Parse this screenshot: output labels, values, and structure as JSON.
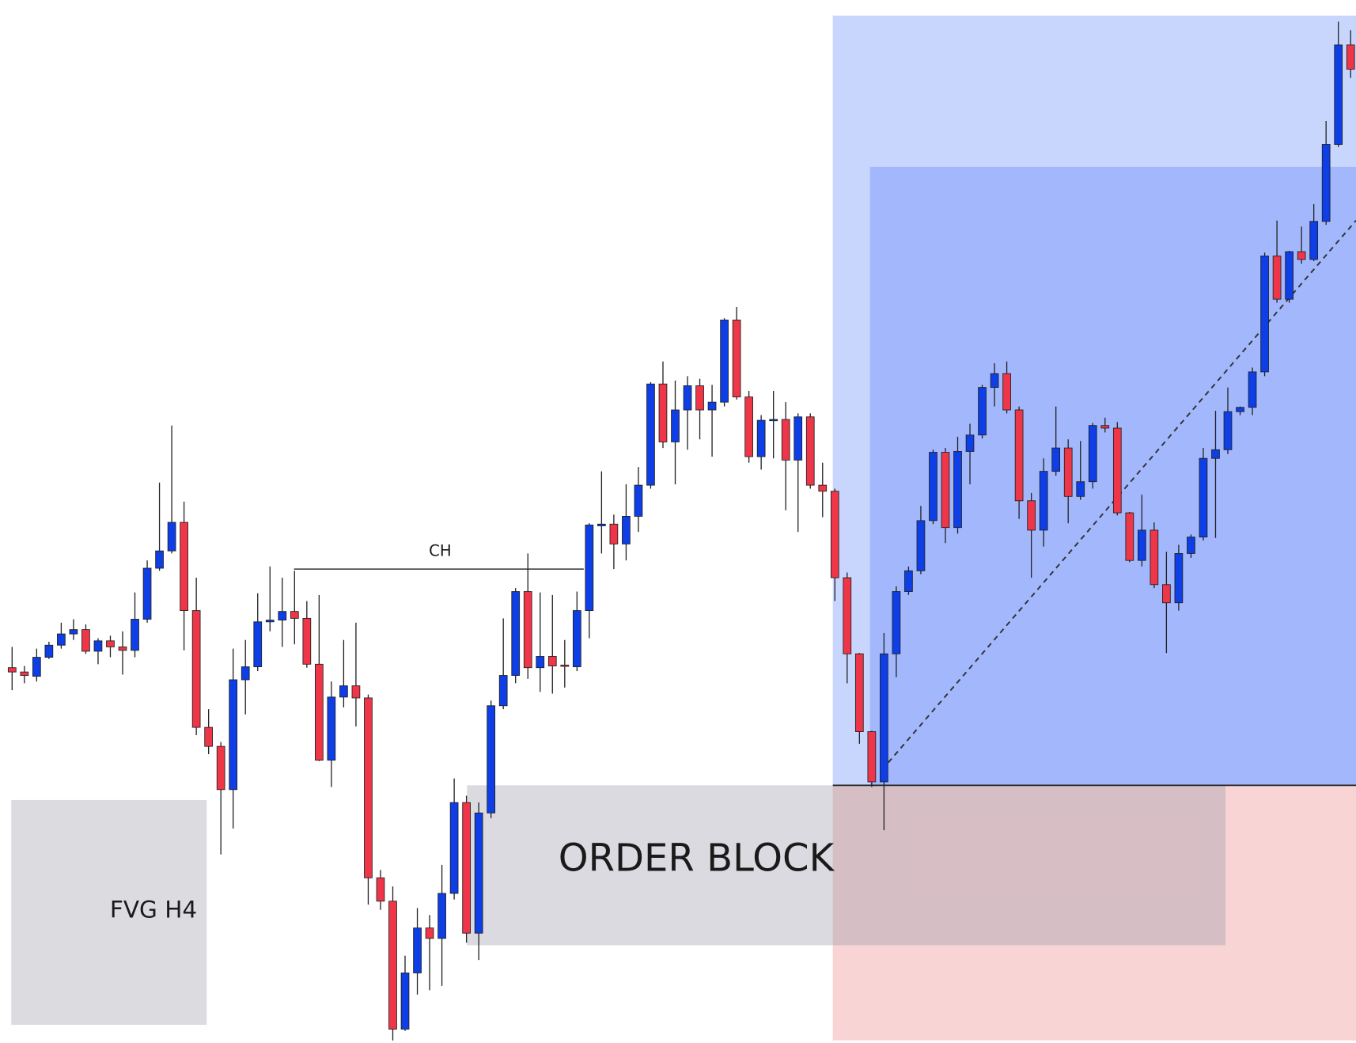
{
  "chart_data": {
    "type": "candlestick",
    "up_color": "#0d3ee6",
    "down_color": "#ef3648",
    "ylim": [
      94,
      1300
    ],
    "open": [
      528,
      523,
      518,
      540,
      554,
      567,
      572,
      547,
      559,
      552,
      548,
      584,
      643,
      663,
      696,
      594,
      459,
      437,
      387,
      514,
      529,
      581,
      583,
      593,
      585,
      532,
      421,
      494,
      507,
      493,
      285,
      258,
      110,
      175,
      227,
      215,
      267,
      372,
      221,
      360,
      484,
      519,
      616,
      528,
      541,
      531,
      529,
      594,
      692,
      694,
      671,
      703,
      739,
      856,
      789,
      826,
      854,
      826,
      835,
      930,
      841,
      772,
      814,
      815,
      768,
      818,
      739,
      732,
      632,
      544,
      454,
      396,
      544,
      616,
      640,
      698,
      777,
      690,
      778,
      797,
      852,
      868,
      826,
      721,
      687,
      755,
      782,
      726,
      743,
      808,
      805,
      707,
      652,
      687,
      624,
      603,
      660,
      679,
      770,
      780,
      824,
      829,
      870,
      1004,
      954,
      1009,
      1000,
      1044,
      1133,
      1248
    ],
    "high": [
      552,
      530,
      550,
      558,
      580,
      584,
      578,
      562,
      565,
      570,
      615,
      652,
      742,
      808,
      720,
      632,
      480,
      442,
      550,
      560,
      614,
      645,
      632,
      640,
      605,
      612,
      512,
      560,
      580,
      497,
      294,
      275,
      195,
      250,
      242,
      300,
      400,
      380,
      372,
      490,
      585,
      620,
      660,
      615,
      612,
      560,
      616,
      695,
      755,
      705,
      740,
      760,
      858,
      882,
      860,
      865,
      862,
      855,
      932,
      945,
      848,
      820,
      848,
      835,
      822,
      822,
      765,
      735,
      638,
      545,
      455,
      568,
      622,
      645,
      715,
      780,
      782,
      795,
      810,
      855,
      880,
      882,
      830,
      730,
      770,
      830,
      792,
      790,
      811,
      817,
      812,
      708,
      728,
      696,
      662,
      670,
      682,
      782,
      825,
      852,
      830,
      875,
      1008,
      1045,
      1010,
      1038,
      1064,
      1160,
      1275,
      1265
    ],
    "low": [
      502,
      510,
      512,
      538,
      550,
      560,
      544,
      532,
      540,
      520,
      540,
      580,
      640,
      660,
      548,
      450,
      428,
      312,
      342,
      474,
      524,
      570,
      552,
      555,
      528,
      420,
      390,
      482,
      460,
      254,
      248,
      97,
      108,
      150,
      155,
      160,
      260,
      210,
      190,
      354,
      480,
      510,
      515,
      500,
      498,
      505,
      524,
      562,
      660,
      642,
      652,
      685,
      735,
      782,
      740,
      780,
      792,
      772,
      830,
      838,
      765,
      757,
      770,
      710,
      685,
      735,
      702,
      605,
      510,
      440,
      390,
      340,
      517,
      612,
      636,
      694,
      672,
      683,
      740,
      793,
      830,
      822,
      700,
      632,
      668,
      750,
      695,
      722,
      735,
      800,
      704,
      650,
      645,
      620,
      545,
      594,
      655,
      675,
      678,
      775,
      820,
      820,
      865,
      950,
      950,
      995,
      998,
      1040,
      1130,
      1210
    ],
    "close": [
      523,
      519,
      540,
      554,
      567,
      572,
      547,
      559,
      552,
      548,
      584,
      643,
      663,
      696,
      594,
      459,
      437,
      387,
      514,
      529,
      581,
      583,
      593,
      585,
      532,
      421,
      494,
      507,
      493,
      285,
      258,
      110,
      175,
      227,
      215,
      267,
      372,
      221,
      360,
      484,
      519,
      616,
      528,
      541,
      530,
      530,
      594,
      693,
      694,
      671,
      703,
      739,
      856,
      789,
      826,
      854,
      826,
      835,
      930,
      841,
      772,
      814,
      815,
      768,
      818,
      739,
      732,
      632,
      544,
      454,
      396,
      544,
      616,
      640,
      698,
      777,
      690,
      778,
      797,
      852,
      868,
      826,
      721,
      687,
      755,
      782,
      726,
      743,
      808,
      805,
      707,
      652,
      687,
      624,
      603,
      660,
      679,
      770,
      780,
      824,
      829,
      870,
      1004,
      954,
      1009,
      1000,
      1044,
      1133,
      1248,
      1220
    ],
    "zones": [
      {
        "color": "#c8d6fe",
        "top": 1282,
        "bottom": 392
      },
      {
        "color": "#a3b8fc",
        "top": 1107,
        "bottom": 392
      },
      {
        "color": "#f8d4d5",
        "top": 392,
        "bottom": 97
      },
      {
        "label": "ORDER BLOCK",
        "color": "rgba(150,150,165,0.35)",
        "top": 392,
        "bottom": 207
      },
      {
        "label": "FVG H4",
        "color": "#dcdce0",
        "top": 375,
        "bottom": 115
      }
    ],
    "structure_line": {
      "label": "CH",
      "value": 642
    },
    "stop_level": 392,
    "trend_line": [
      410,
      1045
    ]
  }
}
